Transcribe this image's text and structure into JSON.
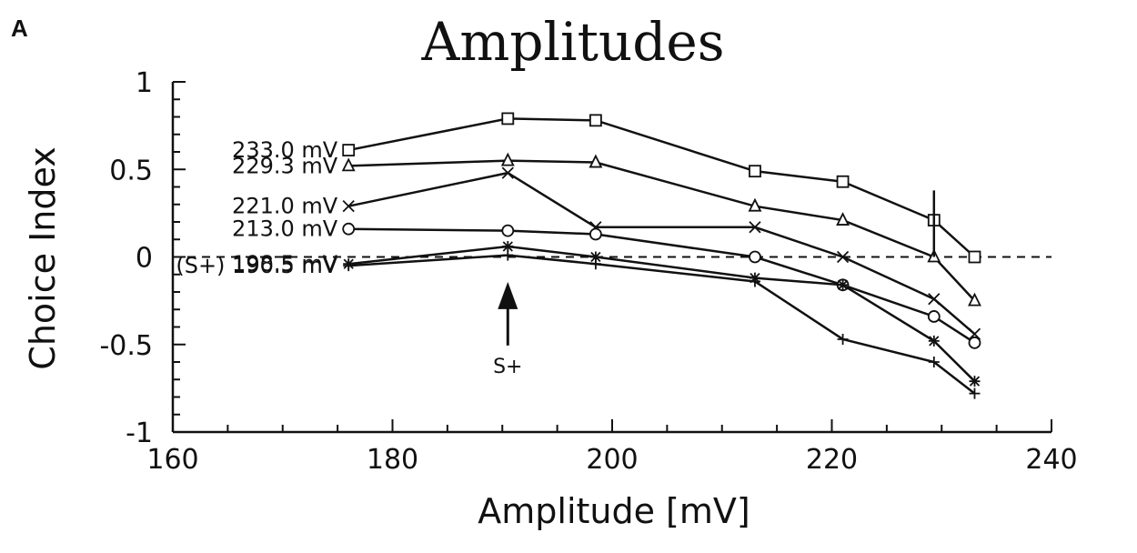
{
  "panel_label": "A",
  "chart_data": {
    "type": "line",
    "title": "Amplitudes",
    "xlabel": "Amplitude [mV]",
    "ylabel": "Choice Index",
    "xlim": [
      160,
      240
    ],
    "ylim": [
      -1,
      1
    ],
    "x_ticks": [
      160,
      180,
      200,
      220,
      240
    ],
    "y_ticks": [
      1,
      0.5,
      0,
      -0.5,
      -1
    ],
    "y_tick_labels": [
      "1",
      "0.5",
      "0",
      "-0.5",
      "-1"
    ],
    "grid": false,
    "reference_line": {
      "y": 0,
      "style": "dashed"
    },
    "x": [
      176,
      190.5,
      198.5,
      213,
      221,
      229.3,
      233
    ],
    "series": [
      {
        "name": "233.0 mV",
        "marker": "square",
        "values": [
          0.61,
          0.79,
          0.78,
          0.49,
          0.43,
          0.21,
          0.0
        ]
      },
      {
        "name": "229.3 mV",
        "marker": "triangle",
        "values": [
          0.52,
          0.55,
          0.54,
          0.29,
          0.21,
          0.0,
          -0.25
        ]
      },
      {
        "name": "221.0 mV",
        "marker": "x",
        "values": [
          0.29,
          0.48,
          0.17,
          0.17,
          0.0,
          -0.24,
          -0.44
        ]
      },
      {
        "name": "213.0 mV",
        "marker": "circle",
        "values": [
          0.16,
          0.15,
          0.13,
          0.0,
          -0.16,
          -0.34,
          -0.49
        ]
      },
      {
        "name": "198.5 mV",
        "marker": "asterisk",
        "values": [
          -0.04,
          0.06,
          0.0,
          -0.12,
          -0.16,
          -0.48,
          -0.71
        ]
      },
      {
        "name": "(S+) 190.5 mV",
        "marker": "plus",
        "values": [
          -0.05,
          0.01,
          -0.04,
          -0.14,
          -0.47,
          -0.6,
          -0.78
        ]
      }
    ],
    "annotations": [
      {
        "text": "S+",
        "x": 190.5,
        "y": -0.62,
        "arrow": true
      }
    ],
    "error_bars": [
      {
        "x": 229.3,
        "y_low": 0.0,
        "y_high": 0.38
      }
    ]
  }
}
